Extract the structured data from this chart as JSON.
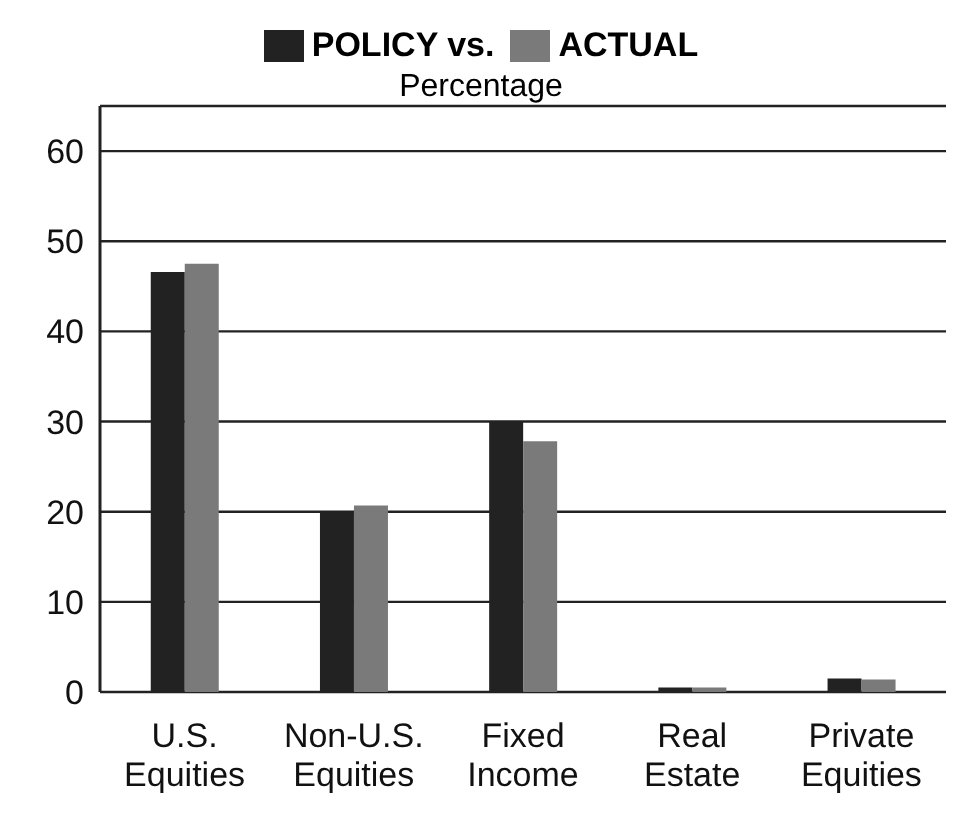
{
  "chart_data": {
    "type": "bar",
    "subtitle": "Percentage",
    "categories": [
      "U.S.\nEquities",
      "Non-U.S.\nEquities",
      "Fixed\nIncome",
      "Real\nEstate",
      "Private\nEquities"
    ],
    "series": [
      {
        "name": "POLICY vs.",
        "color": "#222222",
        "values": [
          46.6,
          20,
          30,
          0.5,
          1.5
        ]
      },
      {
        "name": "ACTUAL",
        "color": "#7a7a7a",
        "values": [
          47.5,
          20.7,
          27.8,
          0.5,
          1.4
        ]
      }
    ],
    "ylim": [
      0,
      65
    ],
    "yticks": [
      0,
      10,
      20,
      30,
      40,
      50,
      60
    ],
    "grid": "y",
    "legend": "top"
  }
}
